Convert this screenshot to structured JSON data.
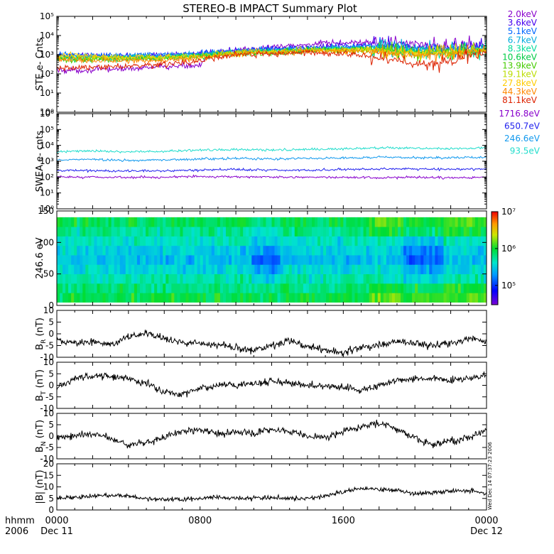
{
  "title": "STEREO-B IMPACT Summary Plot",
  "x_axis": {
    "label_line1": "hhmm",
    "label_line2": "2006",
    "ticks": [
      "0000",
      "0800",
      "1600",
      "0000"
    ],
    "dates": [
      "Dec 11",
      "",
      "",
      "Dec 12"
    ]
  },
  "side_timestamp": "Wed Dec 14 07:37:23 2006",
  "chart_data": [
    {
      "type": "line",
      "ylabel": "STE e- Cnts",
      "yscale": "log",
      "ylim": [
        1,
        100000
      ],
      "yticks": [
        "10⁰",
        "10¹",
        "10²",
        "10³",
        "10⁴",
        "10⁵"
      ],
      "x_range_hours": [
        0,
        24
      ],
      "series": [
        {
          "name": "2.0keV",
          "color": "#8800cc",
          "values": [
            150,
            160,
            190,
            230,
            300,
            1800,
            2300,
            3400,
            4200,
            4600,
            3800,
            2900,
            3000
          ]
        },
        {
          "name": "3.6keV",
          "color": "#4400ee",
          "values": [
            900,
            850,
            900,
            950,
            1100,
            1600,
            2000,
            2500,
            3000,
            3100,
            2400,
            2200,
            2600
          ]
        },
        {
          "name": "5.1keV",
          "color": "#0066ff",
          "values": [
            1000,
            900,
            950,
            1000,
            1200,
            1500,
            1900,
            2200,
            2600,
            2800,
            2100,
            2000,
            2400
          ]
        },
        {
          "name": "6.7keV",
          "color": "#00aadd",
          "values": [
            800,
            750,
            800,
            850,
            1000,
            1400,
            1700,
            2000,
            2300,
            2400,
            1800,
            1700,
            2100
          ]
        },
        {
          "name": "8.3keV",
          "color": "#00dd99",
          "values": [
            700,
            650,
            700,
            750,
            900,
            1300,
            1500,
            1800,
            2000,
            2100,
            1500,
            1500,
            1900
          ]
        },
        {
          "name": "10.6keV",
          "color": "#00cc44",
          "values": [
            650,
            600,
            650,
            700,
            850,
            1200,
            1400,
            1700,
            1900,
            1900,
            1400,
            1400,
            1800
          ]
        },
        {
          "name": "13.9keV",
          "color": "#44cc00",
          "values": [
            600,
            560,
            600,
            650,
            800,
            1150,
            1350,
            1600,
            1800,
            1800,
            1300,
            1300,
            1700
          ]
        },
        {
          "name": "19.1keV",
          "color": "#bbdd00",
          "values": [
            800,
            700,
            700,
            700,
            850,
            1300,
            1500,
            1700,
            1800,
            1800,
            1300,
            1400,
            1900
          ]
        },
        {
          "name": "27.8keV",
          "color": "#ffcc00",
          "values": [
            1000,
            800,
            750,
            700,
            800,
            1200,
            1400,
            1600,
            1700,
            1600,
            1100,
            1300,
            1800
          ]
        },
        {
          "name": "44.3keV",
          "color": "#ff8800",
          "values": [
            600,
            500,
            500,
            500,
            650,
            1100,
            1300,
            1500,
            1500,
            1300,
            900,
            1100,
            1600
          ]
        },
        {
          "name": "81.1keV",
          "color": "#dd2200",
          "values": [
            200,
            220,
            250,
            300,
            500,
            1000,
            1100,
            1300,
            1100,
            700,
            300,
            400,
            1200
          ]
        }
      ]
    },
    {
      "type": "line",
      "ylabel": "SWEA e- cnts",
      "yscale": "log",
      "ylim": [
        1,
        1000000
      ],
      "yticks": [
        "10⁰",
        "10¹",
        "10²",
        "10³",
        "10⁴",
        "10⁵",
        "10⁶"
      ],
      "x_range_hours": [
        0,
        24
      ],
      "series": [
        {
          "name": "1716.8eV",
          "color": "#8800cc",
          "values": [
            100,
            100,
            95,
            100,
            110,
            105,
            100,
            100,
            95,
            90,
            95,
            90,
            95
          ]
        },
        {
          "name": "650.7eV",
          "color": "#2222ee",
          "values": [
            250,
            260,
            240,
            250,
            280,
            300,
            280,
            270,
            300,
            330,
            320,
            300,
            320
          ]
        },
        {
          "name": "246.6eV",
          "color": "#1199ee",
          "values": [
            1200,
            1300,
            1100,
            1200,
            1400,
            1500,
            1400,
            1500,
            1600,
            1800,
            1700,
            1600,
            1800
          ]
        },
        {
          "name": "93.5eV",
          "color": "#22ddcc",
          "values": [
            4000,
            4500,
            3800,
            4200,
            5000,
            5500,
            5000,
            5500,
            6000,
            7000,
            6500,
            6200,
            7000
          ]
        }
      ]
    },
    {
      "type": "heatmap",
      "ylabel": "246.6 eV",
      "ylim": [
        0,
        180
      ],
      "yticks": [
        "0",
        "50",
        "100",
        "150"
      ],
      "x_range_hours": [
        0,
        24
      ],
      "colorbar": {
        "scale": "log",
        "range": [
          30000,
          10000000
        ],
        "ticks": [
          "10⁵",
          "10⁶",
          "10⁷"
        ]
      }
    },
    {
      "type": "line",
      "ylabel_main": "B",
      "ylabel_sub": "R",
      "ylabel_unit": " (nT)",
      "ylim": [
        -10,
        10
      ],
      "yticks": [
        "-10",
        "-5",
        "0",
        "5",
        "10"
      ],
      "x_range_hours": [
        0,
        24
      ],
      "series": [
        {
          "color": "#000000",
          "values": [
            -3,
            -4,
            -3,
            -5,
            -1,
            0,
            -2,
            -4,
            -4,
            -5,
            -6,
            -7,
            -5,
            -3,
            -5,
            -7,
            -8,
            -6,
            -5,
            -3,
            -4,
            -5,
            -4,
            -2,
            -3
          ]
        }
      ]
    },
    {
      "type": "line",
      "ylabel_main": "B",
      "ylabel_sub": "T",
      "ylabel_unit": " (nT)",
      "ylim": [
        -10,
        10
      ],
      "yticks": [
        "-10",
        "-5",
        "0",
        "5",
        "10"
      ],
      "x_range_hours": [
        0,
        24
      ],
      "series": [
        {
          "color": "#000000",
          "values": [
            -1,
            3,
            4,
            4,
            3,
            1,
            -3,
            -4,
            -1,
            0,
            0,
            1,
            2,
            1,
            0,
            0,
            -1,
            -2,
            0,
            2,
            3,
            3,
            2,
            3,
            4
          ]
        }
      ]
    },
    {
      "type": "line",
      "ylabel_main": "B",
      "ylabel_sub": "N",
      "ylabel_unit": " (nT)",
      "ylim": [
        -10,
        10
      ],
      "yticks": [
        "-10",
        "-5",
        "0",
        "5",
        "10"
      ],
      "x_range_hours": [
        0,
        24
      ],
      "series": [
        {
          "color": "#000000",
          "values": [
            -1,
            0,
            1,
            -1,
            -4,
            -3,
            0,
            2,
            3,
            1,
            2,
            1,
            3,
            2,
            0,
            -1,
            2,
            4,
            6,
            3,
            -1,
            -4,
            -2,
            -1,
            3
          ]
        }
      ]
    },
    {
      "type": "line",
      "ylabel_main": "|B| (nT)",
      "ylim": [
        0,
        20
      ],
      "yticks": [
        "0",
        "5",
        "10",
        "15",
        "20"
      ],
      "x_range_hours": [
        0,
        24
      ],
      "series": [
        {
          "color": "#000000",
          "values": [
            5,
            5.5,
            6,
            6.5,
            6,
            5,
            4.5,
            4.5,
            5,
            5.5,
            5,
            5,
            5.5,
            5,
            5,
            6,
            8,
            9,
            9,
            8.5,
            7,
            7.5,
            8,
            8.5,
            7
          ]
        }
      ]
    }
  ]
}
